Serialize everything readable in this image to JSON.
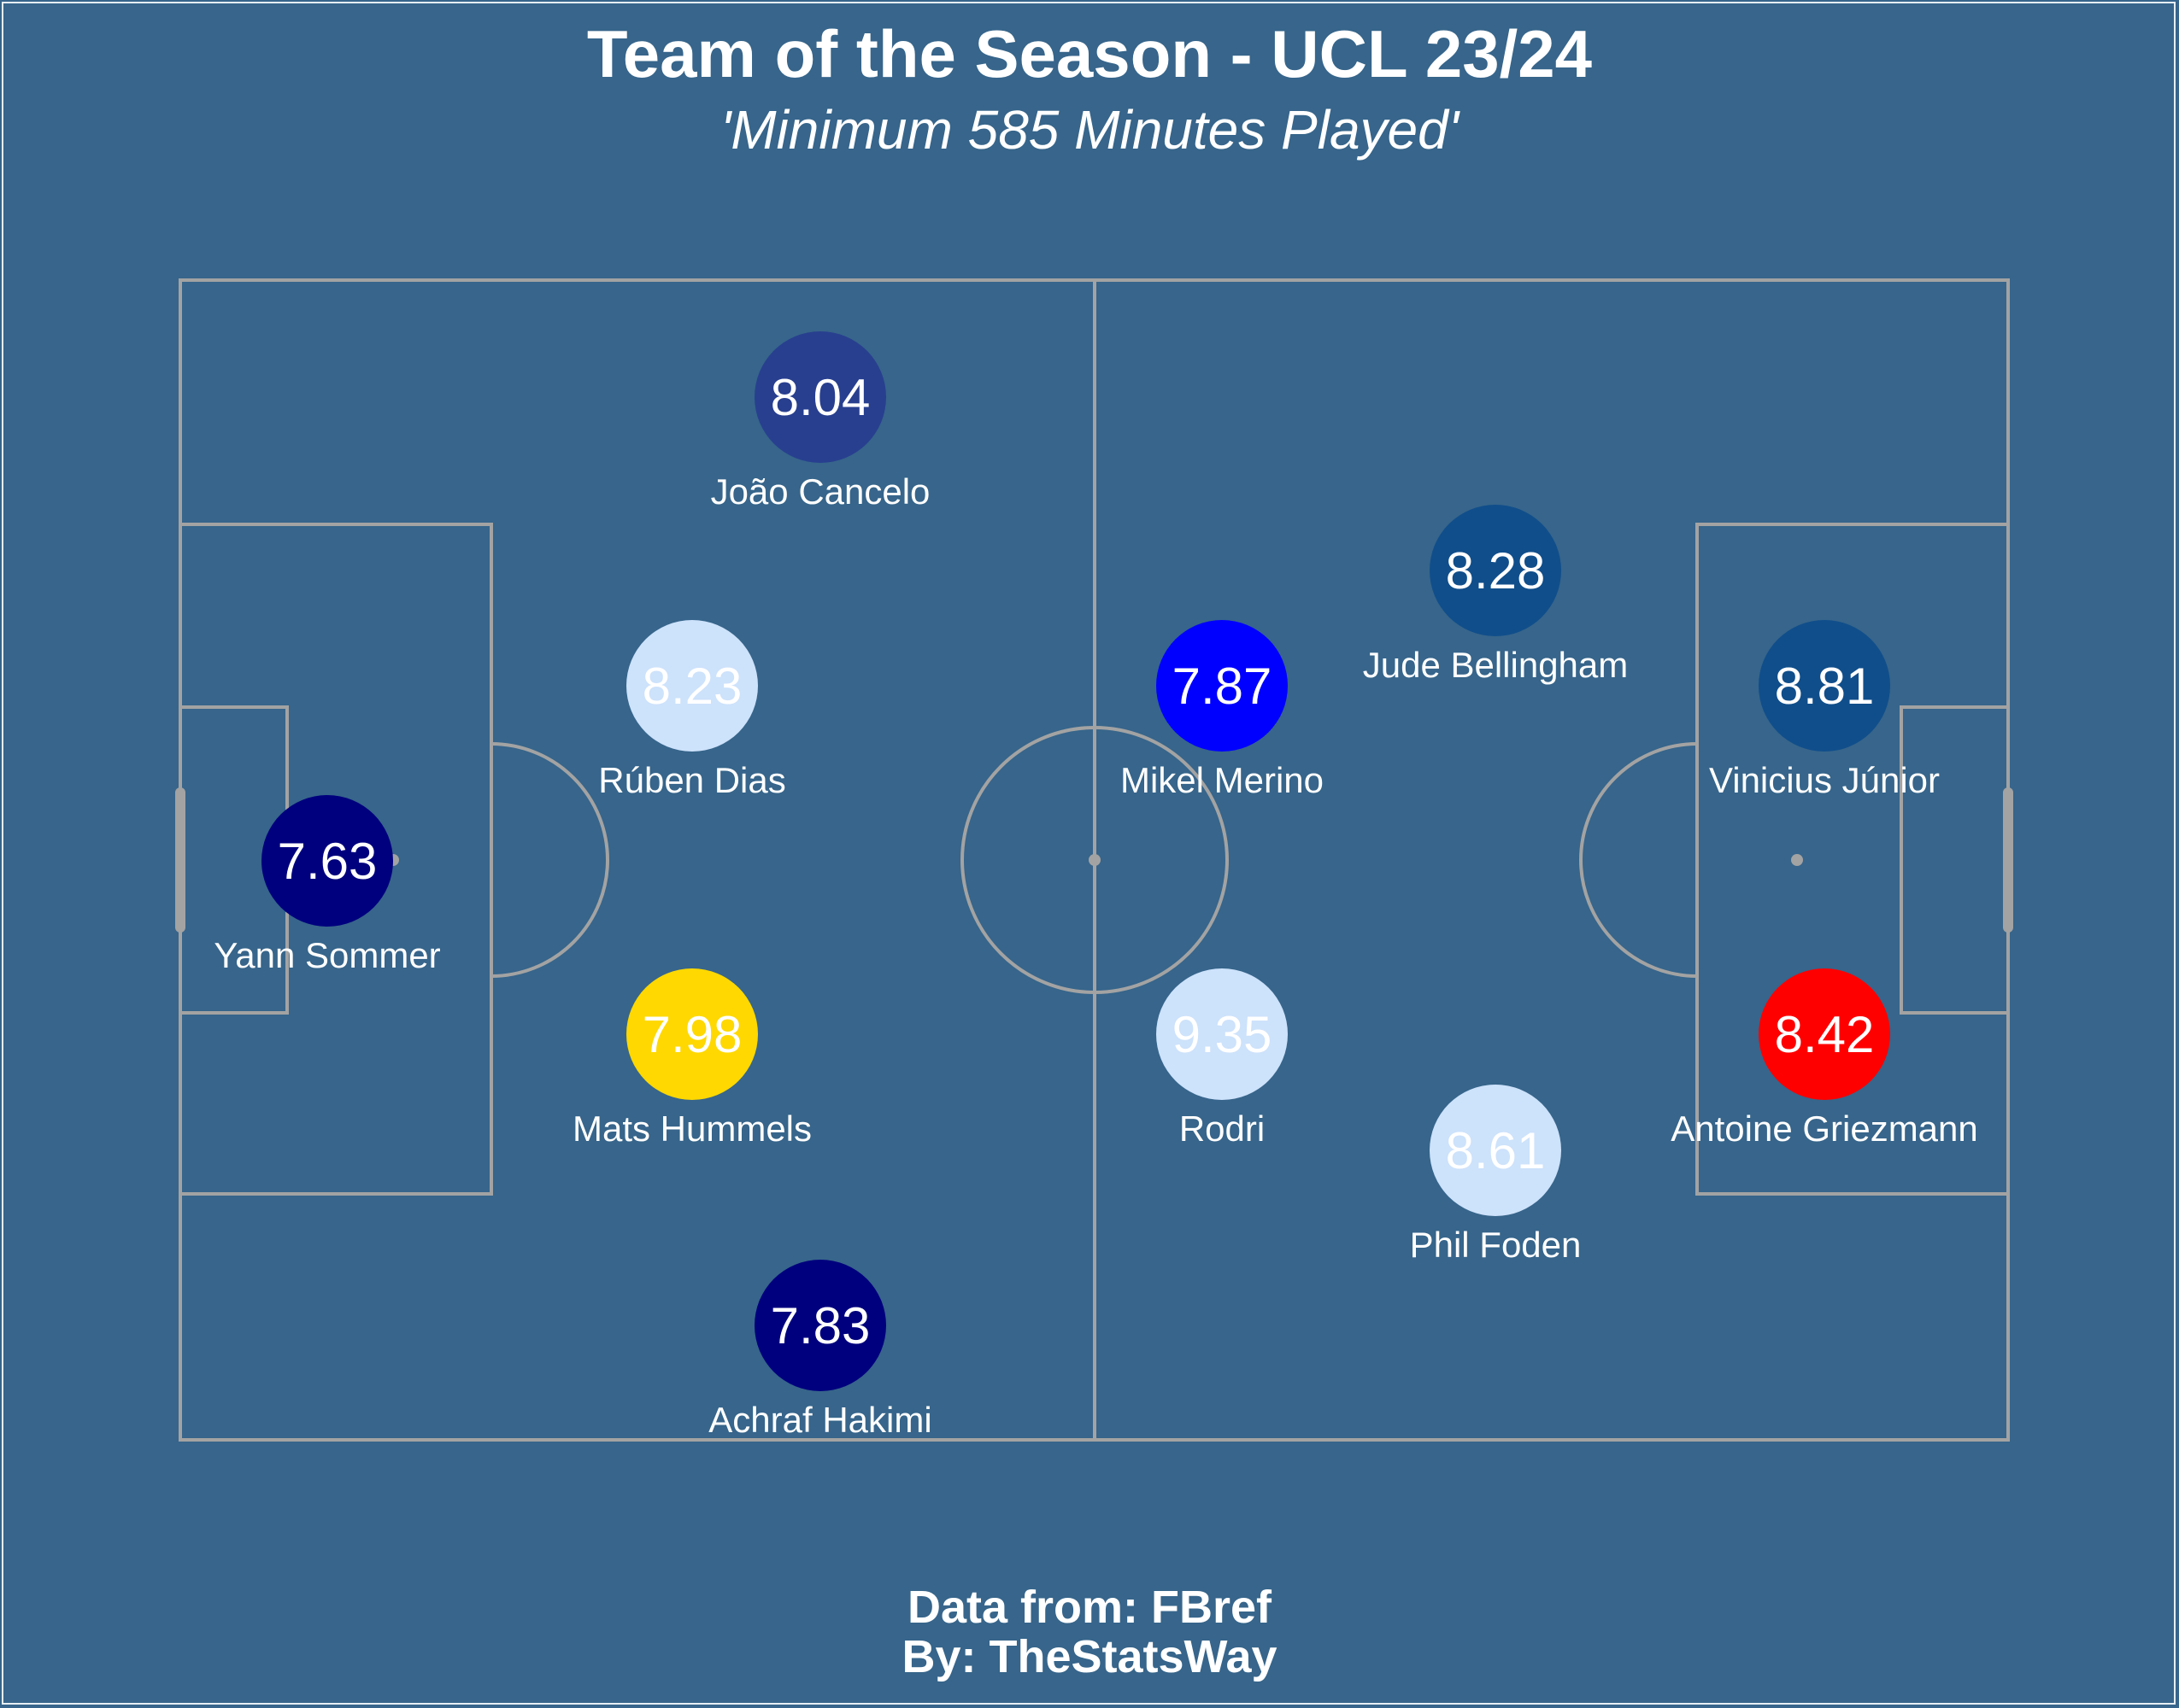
{
  "title": "Team of the Season - UCL 23/24",
  "subtitle": "'Minimum 585 Minutes Played'",
  "footer": {
    "source": "Data from: FBref",
    "author": "By: TheStatsWay"
  },
  "colors": {
    "background": "#37658b",
    "pitch_lines": "#a3a3a3",
    "text": "#ffffff"
  },
  "players": [
    {
      "name": "João Cancelo",
      "rating": "8.04",
      "color": "#283f8f"
    },
    {
      "name": "Rúben Dias",
      "rating": "8.23",
      "color": "#cde2fb"
    },
    {
      "name": "Yann Sommer",
      "rating": "7.63",
      "color": "#00007e"
    },
    {
      "name": "Mats Hummels",
      "rating": "7.98",
      "color": "#fed800"
    },
    {
      "name": "Achraf Hakimi",
      "rating": "7.83",
      "color": "#00007e"
    },
    {
      "name": "Mikel Merino",
      "rating": "7.87",
      "color": "#0000ff"
    },
    {
      "name": "Rodri",
      "rating": "9.35",
      "color": "#cde2fb"
    },
    {
      "name": "Jude Bellingham",
      "rating": "8.28",
      "color": "#104e8b"
    },
    {
      "name": "Phil Foden",
      "rating": "8.61",
      "color": "#cde2fb"
    },
    {
      "name": "Vinicius Júnior",
      "rating": "8.81",
      "color": "#104e8b"
    },
    {
      "name": "Antoine Griezmann",
      "rating": "8.42",
      "color": "#ff0000"
    }
  ]
}
